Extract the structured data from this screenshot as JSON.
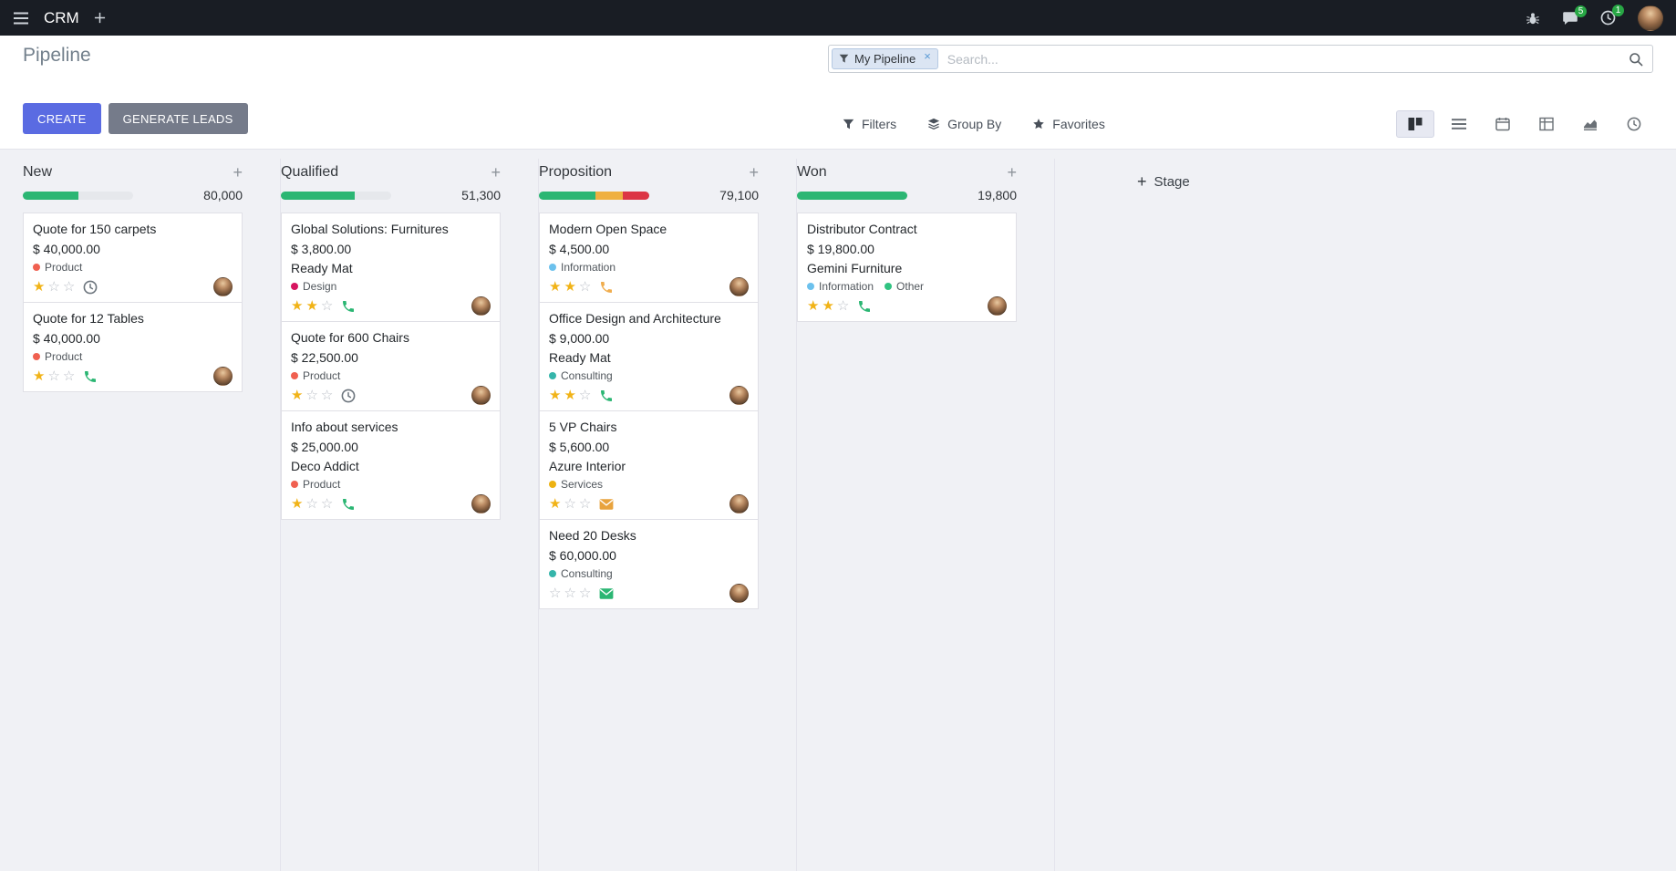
{
  "colors": {
    "accent": "#5a6be2",
    "success": "#2bb673",
    "warning": "#efb041",
    "danger": "#dc3545"
  },
  "navbar": {
    "app_name": "CRM",
    "messages_badge": "5",
    "activities_badge": "1"
  },
  "panel": {
    "title": "Pipeline",
    "create": "CREATE",
    "generate_leads": "GENERATE LEADS",
    "facet": "My Pipeline",
    "search_placeholder": "Search...",
    "filters": "Filters",
    "group_by": "Group By",
    "favorites": "Favorites"
  },
  "kanban": {
    "add_stage": "Stage",
    "columns": [
      {
        "name": "New",
        "counter": "80,000",
        "progress": [
          {
            "color": "#2bb673",
            "pct": 50
          }
        ],
        "cards": [
          {
            "title": "Quote for 150 carpets",
            "amount": "$ 40,000.00",
            "tags": [
              {
                "label": "Product",
                "color": "#f06050"
              }
            ],
            "stars": 1,
            "activity": {
              "type": "clock",
              "color": "#6c757d"
            }
          },
          {
            "title": "Quote for 12 Tables",
            "amount": "$ 40,000.00",
            "tags": [
              {
                "label": "Product",
                "color": "#f06050"
              }
            ],
            "stars": 1,
            "activity": {
              "type": "phone",
              "color": "#2bb673"
            }
          }
        ]
      },
      {
        "name": "Qualified",
        "counter": "51,300",
        "progress": [
          {
            "color": "#2bb673",
            "pct": 67
          }
        ],
        "cards": [
          {
            "title": "Global Solutions: Furnitures",
            "amount": "$ 3,800.00",
            "partner": "Ready Mat",
            "tags": [
              {
                "label": "Design",
                "color": "#d6145f"
              }
            ],
            "stars": 2,
            "activity": {
              "type": "phone",
              "color": "#2bb673"
            }
          },
          {
            "title": "Quote for 600 Chairs",
            "amount": "$ 22,500.00",
            "tags": [
              {
                "label": "Product",
                "color": "#f06050"
              }
            ],
            "stars": 1,
            "activity": {
              "type": "clock",
              "color": "#6c757d"
            }
          },
          {
            "title": "Info about services",
            "amount": "$ 25,000.00",
            "partner": "Deco Addict",
            "tags": [
              {
                "label": "Product",
                "color": "#f06050"
              }
            ],
            "stars": 1,
            "activity": {
              "type": "phone",
              "color": "#2bb673"
            }
          }
        ]
      },
      {
        "name": "Proposition",
        "counter": "79,100",
        "progress": [
          {
            "color": "#2bb673",
            "pct": 51
          },
          {
            "color": "#efb041",
            "pct": 25
          },
          {
            "color": "#dc3545",
            "pct": 24
          }
        ],
        "cards": [
          {
            "title": "Modern Open Space",
            "amount": "$ 4,500.00",
            "tags": [
              {
                "label": "Information",
                "color": "#6cc1ed"
              }
            ],
            "stars": 2,
            "activity": {
              "type": "phone",
              "color": "#f0ad4e"
            }
          },
          {
            "title": "Office Design and Architecture",
            "amount": "$ 9,000.00",
            "partner": "Ready Mat",
            "tags": [
              {
                "label": "Consulting",
                "color": "#35b5aa"
              }
            ],
            "stars": 2,
            "activity": {
              "type": "phone",
              "color": "#2bb673"
            }
          },
          {
            "title": "5 VP Chairs",
            "amount": "$ 5,600.00",
            "partner": "Azure Interior",
            "tags": [
              {
                "label": "Services",
                "color": "#edb211"
              }
            ],
            "stars": 1,
            "activity": {
              "type": "envelope",
              "color": "#e8a33d"
            }
          },
          {
            "title": "Need 20 Desks",
            "amount": "$ 60,000.00",
            "tags": [
              {
                "label": "Consulting",
                "color": "#35b5aa"
              }
            ],
            "stars": 0,
            "activity": {
              "type": "envelope",
              "color": "#2bb673"
            }
          }
        ]
      },
      {
        "name": "Won",
        "counter": "19,800",
        "progress": [
          {
            "color": "#2bb673",
            "pct": 100
          }
        ],
        "cards": [
          {
            "title": "Distributor Contract",
            "amount": "$ 19,800.00",
            "partner": "Gemini Furniture",
            "tags": [
              {
                "label": "Information",
                "color": "#6cc1ed"
              },
              {
                "label": "Other",
                "color": "#30c381"
              }
            ],
            "stars": 2,
            "activity": {
              "type": "phone",
              "color": "#2bb673"
            }
          }
        ]
      }
    ]
  }
}
